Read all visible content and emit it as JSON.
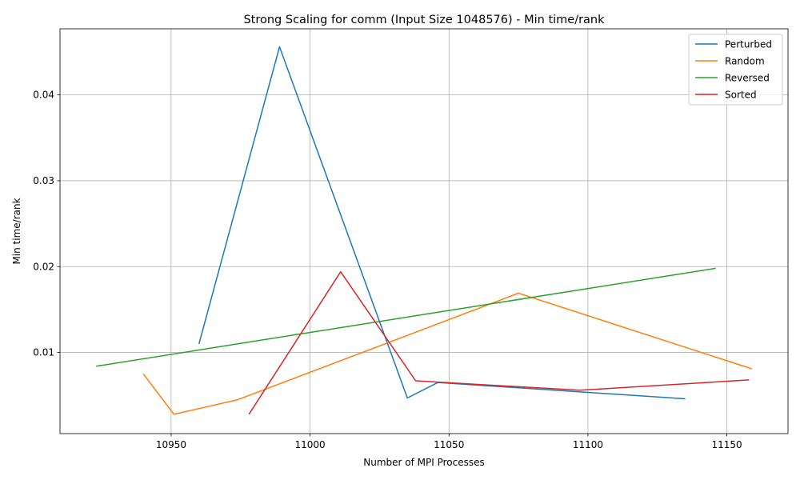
{
  "chart_data": {
    "type": "line",
    "title": "Strong Scaling for comm (Input Size 1048576) - Min time/rank",
    "xlabel": "Number of MPI Processes",
    "ylabel": "Min time/rank",
    "xlim": [
      10910,
      11172
    ],
    "ylim": [
      0.00055,
      0.0477
    ],
    "xticks": [
      10950,
      11000,
      11050,
      11100,
      11150
    ],
    "yticks": [
      0.01,
      0.02,
      0.03,
      0.04
    ],
    "xtick_labels": [
      "10950",
      "11000",
      "11050",
      "11100",
      "11150"
    ],
    "ytick_labels": [
      "0.01",
      "0.02",
      "0.03",
      "0.04"
    ],
    "grid": true,
    "legend_position": "top-right",
    "series": [
      {
        "name": "Perturbed",
        "color": "#1f77b4",
        "x": [
          10960,
          10989,
          11035,
          11046,
          11135
        ],
        "y": [
          0.011,
          0.0456,
          0.0047,
          0.0065,
          0.0046
        ]
      },
      {
        "name": "Random",
        "color": "#ff7f0e",
        "x": [
          10940,
          10951,
          10974,
          11075,
          11159
        ],
        "y": [
          0.0075,
          0.0028,
          0.0045,
          0.0169,
          0.0081
        ]
      },
      {
        "name": "Reversed",
        "color": "#2ca02c",
        "x": [
          10923,
          11146
        ],
        "y": [
          0.0084,
          0.0198
        ]
      },
      {
        "name": "Sorted",
        "color": "#d62728",
        "x": [
          10978,
          11011,
          11038,
          11097,
          11158
        ],
        "y": [
          0.0028,
          0.0194,
          0.0067,
          0.0056,
          0.0068
        ]
      }
    ]
  }
}
